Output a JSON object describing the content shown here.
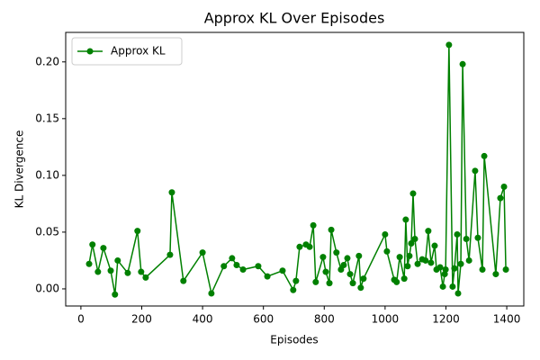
{
  "chart_data": {
    "type": "line",
    "title": "Approx KL Over Episodes",
    "xlabel": "Episodes",
    "ylabel": "KL Divergence",
    "x": [
      27,
      38,
      56,
      74,
      98,
      112,
      121,
      154,
      186,
      198,
      213,
      293,
      299,
      337,
      400,
      429,
      470,
      497,
      512,
      533,
      583,
      613,
      663,
      698,
      707,
      719,
      740,
      752,
      764,
      772,
      796,
      805,
      817,
      823,
      840,
      855,
      864,
      876,
      885,
      894,
      914,
      920,
      929,
      1000,
      1006,
      1030,
      1038,
      1048,
      1063,
      1068,
      1074,
      1080,
      1086,
      1092,
      1098,
      1107,
      1122,
      1133,
      1142,
      1151,
      1163,
      1169,
      1181,
      1190,
      1196,
      1199,
      1210,
      1222,
      1228,
      1237,
      1240,
      1249,
      1255,
      1267,
      1276,
      1296,
      1305,
      1320,
      1326,
      1364,
      1379,
      1391,
      1397
    ],
    "series": [
      {
        "name": "Approx KL",
        "color": "#008000",
        "values": [
          0.022,
          0.039,
          0.015,
          0.036,
          0.016,
          -0.005,
          0.025,
          0.014,
          0.051,
          0.015,
          0.01,
          0.03,
          0.085,
          0.007,
          0.032,
          -0.004,
          0.02,
          0.027,
          0.021,
          0.017,
          0.02,
          0.011,
          0.016,
          -0.001,
          0.007,
          0.037,
          0.039,
          0.037,
          0.056,
          0.006,
          0.028,
          0.015,
          0.005,
          0.052,
          0.032,
          0.017,
          0.021,
          0.027,
          0.013,
          0.005,
          0.029,
          0.001,
          0.009,
          0.048,
          0.033,
          0.008,
          0.006,
          0.028,
          0.009,
          0.061,
          0.02,
          0.029,
          0.04,
          0.084,
          0.044,
          0.022,
          0.026,
          0.025,
          0.051,
          0.023,
          0.038,
          0.017,
          0.019,
          0.002,
          0.013,
          0.017,
          0.215,
          0.002,
          0.018,
          0.048,
          -0.004,
          0.022,
          0.198,
          0.044,
          0.025,
          0.104,
          0.045,
          0.017,
          0.117,
          0.013,
          0.08,
          0.09,
          0.017
        ]
      }
    ],
    "xlim": [
      -50,
      1456
    ],
    "ylim": [
      -0.0151,
      0.226
    ],
    "xticks": [
      0,
      200,
      400,
      600,
      800,
      1000,
      1200,
      1400
    ],
    "yticks": [
      {
        "value": 0,
        "label": "0.00"
      },
      {
        "value": 0.05,
        "label": "0.05"
      },
      {
        "value": 0.1,
        "label": "0.10"
      },
      {
        "value": 0.15,
        "label": "0.15"
      },
      {
        "value": 0.2,
        "label": "0.20"
      }
    ],
    "legend": "upper left",
    "grid": false
  }
}
